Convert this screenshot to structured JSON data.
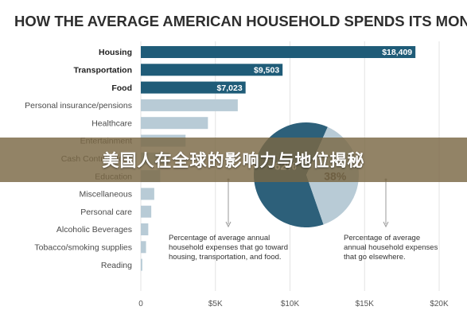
{
  "chart_data": [
    {
      "type": "bar",
      "title": "HOW THE AVERAGE AMERICAN HOUSEHOLD SPENDS ITS MONEY",
      "orientation": "horizontal",
      "categories": [
        "Housing",
        "Transportation",
        "Food",
        "Personal insurance/pensions",
        "Healthcare",
        "Entertainment",
        "Cash Contributions",
        "Education",
        "Miscellaneous",
        "Personal care",
        "Alcoholic Beverages",
        "Tobacco/smoking supplies",
        "Reading"
      ],
      "values": [
        18409,
        9503,
        7023,
        6500,
        4500,
        3000,
        1900,
        1300,
        900,
        700,
        500,
        350,
        100
      ],
      "labels": [
        "$18,409",
        "$9,503",
        "$7,023",
        "",
        "",
        "",
        "",
        "",
        "",
        "",
        "",
        "",
        ""
      ],
      "highlight": [
        true,
        true,
        true,
        false,
        false,
        false,
        false,
        false,
        false,
        false,
        false,
        false,
        false
      ],
      "xlim": [
        0,
        20000
      ],
      "xticks": [
        0,
        5000,
        10000,
        15000,
        20000
      ],
      "xticklabels": [
        "0",
        "$5K",
        "$10K",
        "$15K",
        "$20K"
      ],
      "grid": "vertical",
      "colors": {
        "highlight": "#1f5c78",
        "other": "#b8cbd6"
      }
    },
    {
      "type": "pie",
      "values": [
        62,
        38
      ],
      "labels": [
        "62%",
        "38%"
      ],
      "colors": [
        "#2d607a",
        "#b8cbd6"
      ],
      "annotations": [
        "Percentage of average annual household expenses that go toward housing, transportation, and food.",
        "Percentage of average annual household expenses that go elsewhere."
      ]
    }
  ],
  "notes": {
    "left": [
      "Percentage of average annual",
      "household expenses that go toward",
      "housing, transportation, and food."
    ],
    "right": [
      "Percentage of average",
      "annual household expenses",
      "that go elsewhere."
    ]
  },
  "banner": {
    "text": "美国人在全球的影响力与地位揭秘"
  }
}
